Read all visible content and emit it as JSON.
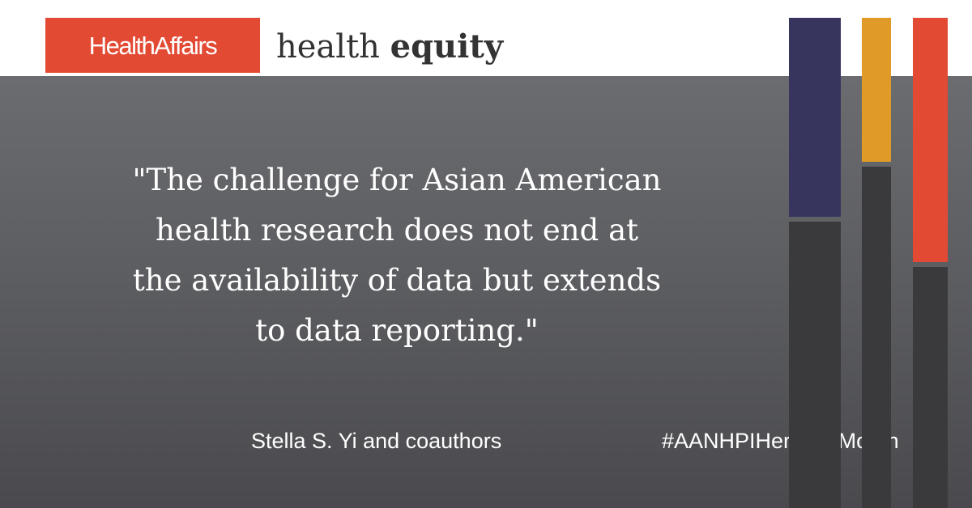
{
  "brand": {
    "logo_text": "HealthAffairs",
    "accent_color": "#e34a33"
  },
  "section": {
    "title_light": "health",
    "title_bold": "equity"
  },
  "quote": {
    "line1": "\"The challenge for Asian American",
    "line2": "health research does not end at",
    "line3": "the availability of data but extends",
    "line4": "to data reporting.\""
  },
  "author": "Stella S. Yi and coauthors",
  "hashtag": "#AANHPIHeritageMonth",
  "decorative_bars": {
    "colors": {
      "navy": "#37345e",
      "gold": "#e09a27",
      "red": "#e34a33",
      "dark": "#3a3a3c"
    }
  }
}
